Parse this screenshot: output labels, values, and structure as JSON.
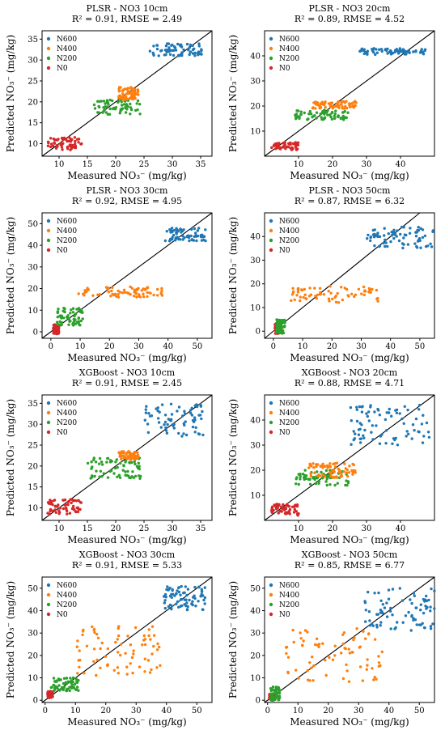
{
  "figure": {
    "xlabel": "Measured NO₃⁻ (mg/kg)",
    "ylabel": "Predicted NO₃⁻ (mg/kg)",
    "legend": [
      "N600",
      "N400",
      "N200",
      "N0"
    ],
    "colors": {
      "N600": "#1f77b4",
      "N400": "#ff7f0e",
      "N200": "#2ca02c",
      "N0": "#d62728"
    }
  },
  "chart_data": [
    {
      "type": "scatter",
      "title": "PLSR - NO3 10cm",
      "subtitle": "R² = 0.91, RMSE = 2.49",
      "xlim": [
        7,
        37
      ],
      "ylim": [
        7,
        37
      ],
      "xticks": [
        10,
        15,
        20,
        25,
        30,
        35
      ],
      "yticks": [
        10,
        15,
        20,
        25,
        30,
        35
      ],
      "legend_position": "top-left",
      "grid": false,
      "series": [
        {
          "name": "N600",
          "x_range": [
            26,
            35.5
          ],
          "y_range": [
            31,
            34
          ],
          "n": 70
        },
        {
          "name": "N400",
          "x_range": [
            20.5,
            24
          ],
          "y_range": [
            20.5,
            23.5
          ],
          "n": 70
        },
        {
          "name": "N200",
          "x_range": [
            16,
            24.5
          ],
          "y_range": [
            17,
            20.5
          ],
          "n": 65
        },
        {
          "name": "N0",
          "x_range": [
            8,
            14
          ],
          "y_range": [
            8.5,
            11.5
          ],
          "n": 60
        }
      ]
    },
    {
      "type": "scatter",
      "title": "PLSR - NO3 20cm",
      "subtitle": "R² = 0.89, RMSE = 4.52",
      "xlim": [
        0,
        50
      ],
      "ylim": [
        0,
        50
      ],
      "xticks": [
        10,
        20,
        30,
        40
      ],
      "yticks": [
        10,
        20,
        30,
        40
      ],
      "legend_position": "top-left",
      "grid": false,
      "series": [
        {
          "name": "N600",
          "x_range": [
            28,
            48
          ],
          "y_range": [
            40.5,
            43
          ],
          "n": 75
        },
        {
          "name": "N400",
          "x_range": [
            14,
            27
          ],
          "y_range": [
            19,
            22
          ],
          "n": 70
        },
        {
          "name": "N200",
          "x_range": [
            9,
            25
          ],
          "y_range": [
            14.5,
            18.5
          ],
          "n": 65
        },
        {
          "name": "N0",
          "x_range": [
            2,
            10
          ],
          "y_range": [
            2.5,
            5.5
          ],
          "n": 60
        }
      ]
    },
    {
      "type": "scatter",
      "title": "PLSR - NO3 30cm",
      "subtitle": "R² = 0.92, RMSE = 4.95",
      "xlim": [
        -3,
        55
      ],
      "ylim": [
        -3,
        55
      ],
      "xticks": [
        0,
        10,
        20,
        30,
        40,
        50
      ],
      "yticks": [
        0,
        10,
        20,
        30,
        40,
        50
      ],
      "legend_position": "top-left",
      "grid": false,
      "series": [
        {
          "name": "N600",
          "x_range": [
            39,
            53
          ],
          "y_range": [
            42,
            48
          ],
          "n": 70
        },
        {
          "name": "N400",
          "x_range": [
            9,
            38
          ],
          "y_range": [
            16,
            21
          ],
          "n": 70
        },
        {
          "name": "N200",
          "x_range": [
            2,
            11
          ],
          "y_range": [
            3,
            11
          ],
          "n": 65
        },
        {
          "name": "N0",
          "x_range": [
            0.8,
            2.8
          ],
          "y_range": [
            -1,
            3.5
          ],
          "n": 60
        }
      ]
    },
    {
      "type": "scatter",
      "title": "PLSR - NO3 50cm",
      "subtitle": "R² = 0.87, RMSE = 6.32",
      "xlim": [
        -3,
        55
      ],
      "ylim": [
        -3,
        50
      ],
      "xticks": [
        0,
        10,
        20,
        30,
        40,
        50
      ],
      "yticks": [
        0,
        10,
        20,
        30,
        40
      ],
      "legend_position": "top-left",
      "grid": false,
      "series": [
        {
          "name": "N600",
          "x_range": [
            32,
            55
          ],
          "y_range": [
            35,
            44
          ],
          "n": 75
        },
        {
          "name": "N400",
          "x_range": [
            6,
            36
          ],
          "y_range": [
            12,
            19
          ],
          "n": 70
        },
        {
          "name": "N200",
          "x_range": [
            1,
            4
          ],
          "y_range": [
            -1,
            5
          ],
          "n": 60
        },
        {
          "name": "N0",
          "x_range": [
            0.5,
            2.5
          ],
          "y_range": [
            -1,
            3.5
          ],
          "n": 55
        }
      ]
    },
    {
      "type": "scatter",
      "title": "XGBoost - NO3 10cm",
      "subtitle": "R² = 0.91, RMSE = 2.45",
      "xlim": [
        7,
        37
      ],
      "ylim": [
        7,
        37
      ],
      "xticks": [
        10,
        15,
        20,
        25,
        30,
        35
      ],
      "yticks": [
        10,
        15,
        20,
        25,
        30,
        35
      ],
      "legend_position": "top-left",
      "grid": false,
      "series": [
        {
          "name": "N600",
          "x_range": [
            25,
            35.5
          ],
          "y_range": [
            27,
            35
          ],
          "n": 70
        },
        {
          "name": "N400",
          "x_range": [
            20.5,
            24
          ],
          "y_range": [
            21.5,
            23.5
          ],
          "n": 70
        },
        {
          "name": "N200",
          "x_range": [
            15,
            24.5
          ],
          "y_range": [
            17,
            22
          ],
          "n": 70
        },
        {
          "name": "N0",
          "x_range": [
            8,
            14
          ],
          "y_range": [
            8.5,
            12
          ],
          "n": 60
        }
      ]
    },
    {
      "type": "scatter",
      "title": "XGBoost - NO3 20cm",
      "subtitle": "R² = 0.88, RMSE = 4.71",
      "xlim": [
        0,
        50
      ],
      "ylim": [
        0,
        50
      ],
      "xticks": [
        10,
        20,
        30,
        40
      ],
      "yticks": [
        10,
        20,
        30,
        40
      ],
      "legend_position": "top-left",
      "grid": false,
      "series": [
        {
          "name": "N600",
          "x_range": [
            24,
            49
          ],
          "y_range": [
            30,
            46
          ],
          "n": 80
        },
        {
          "name": "N400",
          "x_range": [
            13,
            27
          ],
          "y_range": [
            17,
            23
          ],
          "n": 70
        },
        {
          "name": "N200",
          "x_range": [
            9,
            25
          ],
          "y_range": [
            14,
            20
          ],
          "n": 70
        },
        {
          "name": "N0",
          "x_range": [
            2,
            10
          ],
          "y_range": [
            2,
            6.5
          ],
          "n": 60
        }
      ]
    },
    {
      "type": "scatter",
      "title": "XGBoost - NO3 30cm",
      "subtitle": "R² = 0.91, RMSE = 5.33",
      "xlim": [
        -1,
        55
      ],
      "ylim": [
        -1,
        55
      ],
      "xticks": [
        0,
        10,
        20,
        30,
        40,
        50
      ],
      "yticks": [
        0,
        10,
        20,
        30,
        40,
        50
      ],
      "legend_position": "top-left",
      "grid": false,
      "series": [
        {
          "name": "N600",
          "x_range": [
            39,
            53
          ],
          "y_range": [
            40,
            51
          ],
          "n": 75
        },
        {
          "name": "N400",
          "x_range": [
            9,
            38
          ],
          "y_range": [
            11,
            33
          ],
          "n": 75
        },
        {
          "name": "N200",
          "x_range": [
            2,
            11
          ],
          "y_range": [
            4,
            10
          ],
          "n": 65
        },
        {
          "name": "N0",
          "x_range": [
            0.8,
            2.5
          ],
          "y_range": [
            1,
            4
          ],
          "n": 50
        }
      ]
    },
    {
      "type": "scatter",
      "title": "XGBoost - NO3 50cm",
      "subtitle": "R² = 0.85, RMSE = 6.77",
      "xlim": [
        -1,
        55
      ],
      "ylim": [
        -1,
        55
      ],
      "xticks": [
        0,
        10,
        20,
        30,
        40,
        50
      ],
      "yticks": [
        0,
        10,
        20,
        30,
        40,
        50
      ],
      "legend_position": "top-left",
      "grid": false,
      "series": [
        {
          "name": "N600",
          "x_range": [
            32,
            55
          ],
          "y_range": [
            31,
            50
          ],
          "n": 80
        },
        {
          "name": "N400",
          "x_range": [
            6,
            38
          ],
          "y_range": [
            8,
            32
          ],
          "n": 75
        },
        {
          "name": "N200",
          "x_range": [
            1,
            4
          ],
          "y_range": [
            0,
            6
          ],
          "n": 55
        },
        {
          "name": "N0",
          "x_range": [
            0.5,
            2.5
          ],
          "y_range": [
            0,
            3
          ],
          "n": 50
        }
      ]
    }
  ]
}
